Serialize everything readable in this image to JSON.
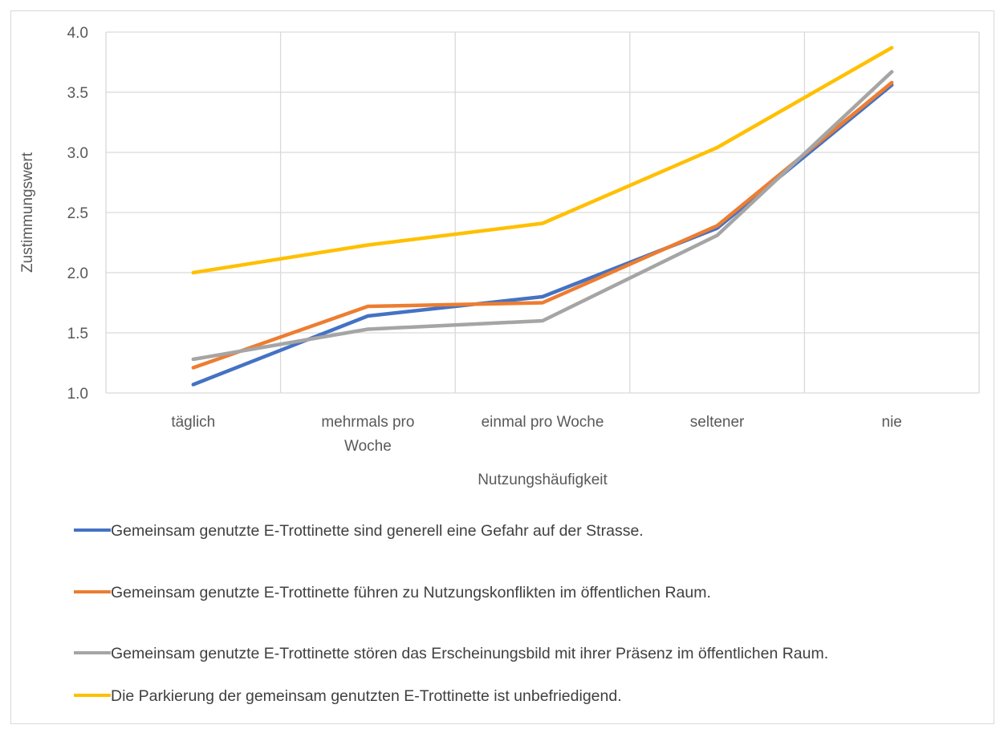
{
  "chart_data": {
    "type": "line",
    "title": "",
    "xlabel": "Nutzungshäufigkeit",
    "ylabel": "Zustimmungswert",
    "categories": [
      "täglich",
      "mehrmals pro Woche",
      "einmal pro Woche",
      "seltener",
      "nie"
    ],
    "category_lines": [
      [
        "täglich"
      ],
      [
        "mehrmals pro",
        "Woche"
      ],
      [
        "einmal pro Woche"
      ],
      [
        "seltener"
      ],
      [
        "nie"
      ]
    ],
    "ylim": [
      1.0,
      4.0
    ],
    "yticks": [
      "1.0",
      "1.5",
      "2.0",
      "2.5",
      "3.0",
      "3.5",
      "4.0"
    ],
    "ytick_values": [
      1.0,
      1.5,
      2.0,
      2.5,
      3.0,
      3.5,
      4.0
    ],
    "grid": true,
    "legend_position": "bottom",
    "series": [
      {
        "name": "Gemeinsam genutzte E-Trottinette sind generell eine Gefahr auf der Strasse.",
        "color": "#4472C4",
        "values": [
          1.07,
          1.64,
          1.8,
          2.37,
          3.56
        ]
      },
      {
        "name": "Gemeinsam genutzte E-Trottinette führen zu Nutzungskonflikten im öffentlichen Raum.",
        "color": "#ED7D31",
        "values": [
          1.21,
          1.72,
          1.75,
          2.39,
          3.58
        ]
      },
      {
        "name": "Gemeinsam genutzte E-Trottinette stören das Erscheinungsbild mit ihrer Präsenz im öffentlichen Raum.",
        "color": "#A5A5A5",
        "values": [
          1.28,
          1.53,
          1.6,
          2.31,
          3.67
        ]
      },
      {
        "name": "Die Parkierung der gemeinsam genutzten E-Trottinette ist unbefriedigend.",
        "color": "#FFC000",
        "values": [
          2.0,
          2.23,
          2.41,
          3.04,
          3.87
        ]
      }
    ]
  }
}
